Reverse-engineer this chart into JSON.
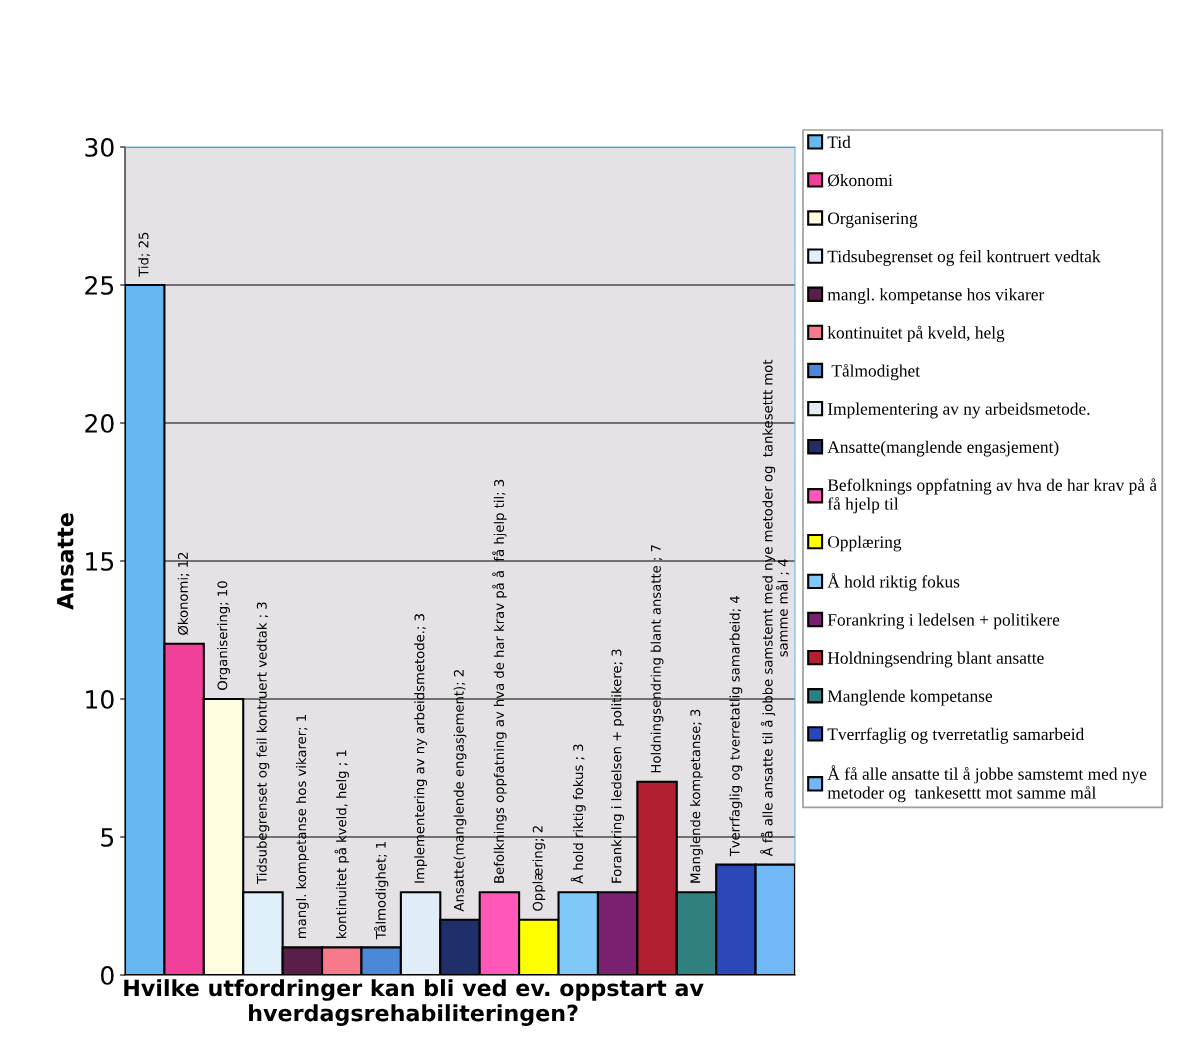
{
  "chart_data": {
    "type": "bar",
    "title": "Hvilke utfordringer kan bli ved ev. oppstart av\nhverdagsrehabiliteringen?",
    "ylabel": "Ansatte",
    "categories": [
      null,
      null,
      null,
      null,
      null,
      null,
      null,
      null,
      null,
      null,
      null,
      null,
      null,
      null,
      null,
      null,
      null
    ],
    "series": [
      {
        "name": "Tid",
        "color": "#66b8f0",
        "values": [
          25,
          null,
          null,
          null,
          null,
          null,
          null,
          null,
          null,
          null,
          null,
          null,
          null,
          null,
          null,
          null,
          null
        ],
        "value_labels": [
          "Tid; 25",
          null,
          null,
          null,
          null,
          null,
          null,
          null,
          null,
          null,
          null,
          null,
          null,
          null,
          null,
          null,
          null
        ]
      },
      {
        "name": "Økonomi",
        "color": "#f0409a",
        "values": [
          null,
          12,
          null,
          null,
          null,
          null,
          null,
          null,
          null,
          null,
          null,
          null,
          null,
          null,
          null,
          null,
          null
        ],
        "value_labels": [
          null,
          "Økonomi; 12",
          null,
          null,
          null,
          null,
          null,
          null,
          null,
          null,
          null,
          null,
          null,
          null,
          null,
          null,
          null
        ]
      },
      {
        "name": "Organisering",
        "color": "#fffde0",
        "values": [
          null,
          null,
          10,
          null,
          null,
          null,
          null,
          null,
          null,
          null,
          null,
          null,
          null,
          null,
          null,
          null,
          null
        ],
        "value_labels": [
          null,
          null,
          "Organisering; 10",
          null,
          null,
          null,
          null,
          null,
          null,
          null,
          null,
          null,
          null,
          null,
          null,
          null,
          null
        ]
      },
      {
        "name": "Tidsubegrenset og feil kontruert vedtak",
        "color": "#e0f0fa",
        "values": [
          null,
          null,
          null,
          3,
          null,
          null,
          null,
          null,
          null,
          null,
          null,
          null,
          null,
          null,
          null,
          null,
          null
        ],
        "value_labels": [
          null,
          null,
          null,
          "Tidsubegrenset og feil kontruert vedtak ; 3",
          null,
          null,
          null,
          null,
          null,
          null,
          null,
          null,
          null,
          null,
          null,
          null,
          null
        ]
      },
      {
        "name": "mangl. kompetanse hos vikarer",
        "color": "#5a1f48",
        "values": [
          null,
          null,
          null,
          null,
          1,
          null,
          null,
          null,
          null,
          null,
          null,
          null,
          null,
          null,
          null,
          null,
          null
        ],
        "value_labels": [
          null,
          null,
          null,
          null,
          "mangl. kompetanse hos vikarer; 1",
          null,
          null,
          null,
          null,
          null,
          null,
          null,
          null,
          null,
          null,
          null,
          null
        ]
      },
      {
        "name": "kontinuitet på kveld, helg",
        "color": "#f87a8a",
        "values": [
          null,
          null,
          null,
          null,
          null,
          1,
          null,
          null,
          null,
          null,
          null,
          null,
          null,
          null,
          null,
          null,
          null
        ],
        "value_labels": [
          null,
          null,
          null,
          null,
          null,
          "kontinuitet på kveld, helg ; 1",
          null,
          null,
          null,
          null,
          null,
          null,
          null,
          null,
          null,
          null,
          null
        ]
      },
      {
        "name": " Tålmodighet",
        "color": "#4a88d8",
        "values": [
          null,
          null,
          null,
          null,
          null,
          null,
          1,
          null,
          null,
          null,
          null,
          null,
          null,
          null,
          null,
          null,
          null
        ],
        "value_labels": [
          null,
          null,
          null,
          null,
          null,
          null,
          "Tålmodighet; 1",
          null,
          null,
          null,
          null,
          null,
          null,
          null,
          null,
          null,
          null
        ]
      },
      {
        "name": "Implementering av ny arbeidsmetode.",
        "color": "#e0ecf8",
        "values": [
          null,
          null,
          null,
          null,
          null,
          null,
          null,
          3,
          null,
          null,
          null,
          null,
          null,
          null,
          null,
          null,
          null
        ],
        "value_labels": [
          null,
          null,
          null,
          null,
          null,
          null,
          null,
          "Implementering av ny arbeidsmetode.; 3",
          null,
          null,
          null,
          null,
          null,
          null,
          null,
          null,
          null
        ]
      },
      {
        "name": "Ansatte(manglende engasjement)",
        "color": "#1f2f6a",
        "values": [
          null,
          null,
          null,
          null,
          null,
          null,
          null,
          null,
          2,
          null,
          null,
          null,
          null,
          null,
          null,
          null,
          null
        ],
        "value_labels": [
          null,
          null,
          null,
          null,
          null,
          null,
          null,
          null,
          "Ansatte(manglende engasjement); 2",
          null,
          null,
          null,
          null,
          null,
          null,
          null,
          null
        ]
      },
      {
        "name": "Befolknings oppfatning av hva de har krav på å\nfå hjelp til",
        "color": "#ff58b8",
        "values": [
          null,
          null,
          null,
          null,
          null,
          null,
          null,
          null,
          null,
          3,
          null,
          null,
          null,
          null,
          null,
          null,
          null
        ],
        "value_labels": [
          null,
          null,
          null,
          null,
          null,
          null,
          null,
          null,
          null,
          "Befolknings oppfatning av hva de har krav på å  få hjelp til; 3",
          null,
          null,
          null,
          null,
          null,
          null,
          null
        ]
      },
      {
        "name": "Opplæring",
        "color": "#ffff00",
        "values": [
          null,
          null,
          null,
          null,
          null,
          null,
          null,
          null,
          null,
          null,
          2,
          null,
          null,
          null,
          null,
          null,
          null
        ],
        "value_labels": [
          null,
          null,
          null,
          null,
          null,
          null,
          null,
          null,
          null,
          null,
          "Opplæring; 2",
          null,
          null,
          null,
          null,
          null,
          null
        ]
      },
      {
        "name": "Å hold riktig fokus",
        "color": "#80c8f8",
        "values": [
          null,
          null,
          null,
          null,
          null,
          null,
          null,
          null,
          null,
          null,
          null,
          3,
          null,
          null,
          null,
          null,
          null
        ],
        "value_labels": [
          null,
          null,
          null,
          null,
          null,
          null,
          null,
          null,
          null,
          null,
          null,
          "Å hold riktig fokus ; 3",
          null,
          null,
          null,
          null,
          null
        ]
      },
      {
        "name": "Forankring i ledelsen + politikere",
        "color": "#7a2070",
        "values": [
          null,
          null,
          null,
          null,
          null,
          null,
          null,
          null,
          null,
          null,
          null,
          null,
          3,
          null,
          null,
          null,
          null
        ],
        "value_labels": [
          null,
          null,
          null,
          null,
          null,
          null,
          null,
          null,
          null,
          null,
          null,
          null,
          "Forankring i ledelsen + politikere; 3",
          null,
          null,
          null,
          null
        ]
      },
      {
        "name": "Holdningsendring blant ansatte",
        "color": "#b02030",
        "values": [
          null,
          null,
          null,
          null,
          null,
          null,
          null,
          null,
          null,
          null,
          null,
          null,
          null,
          7,
          null,
          null,
          null
        ],
        "value_labels": [
          null,
          null,
          null,
          null,
          null,
          null,
          null,
          null,
          null,
          null,
          null,
          null,
          null,
          "Holdningsendring blant ansatte ; 7",
          null,
          null,
          null
        ]
      },
      {
        "name": "Manglende kompetanse",
        "color": "#308080",
        "values": [
          null,
          null,
          null,
          null,
          null,
          null,
          null,
          null,
          null,
          null,
          null,
          null,
          null,
          null,
          3,
          null,
          null
        ],
        "value_labels": [
          null,
          null,
          null,
          null,
          null,
          null,
          null,
          null,
          null,
          null,
          null,
          null,
          null,
          null,
          "Manglende kompetanse; 3",
          null,
          null
        ]
      },
      {
        "name": "Tverrfaglig og tverretatlig samarbeid",
        "color": "#2a48b8",
        "values": [
          null,
          null,
          null,
          null,
          null,
          null,
          null,
          null,
          null,
          null,
          null,
          null,
          null,
          null,
          null,
          4,
          null
        ],
        "value_labels": [
          null,
          null,
          null,
          null,
          null,
          null,
          null,
          null,
          null,
          null,
          null,
          null,
          null,
          null,
          null,
          "Tverrfaglig og tverretatlig samarbeid; 4",
          null
        ]
      },
      {
        "name": "Å få alle ansatte til å jobbe samstemt med nye\nmetoder og  tankesettt mot samme mål",
        "color": "#70b8f8",
        "values": [
          null,
          null,
          null,
          null,
          null,
          null,
          null,
          null,
          null,
          null,
          null,
          null,
          null,
          null,
          null,
          null,
          4
        ],
        "value_labels": [
          null,
          null,
          null,
          null,
          null,
          null,
          null,
          null,
          null,
          null,
          null,
          null,
          null,
          null,
          null,
          null,
          "Å få alle ansatte til å jobbe samstemt med nye metoder og  tankesettt mot\nsamme mål ; 4"
        ]
      }
    ],
    "ylim": [
      0,
      30
    ],
    "yticks": [
      0,
      5,
      10,
      15,
      20,
      25,
      30
    ],
    "grid": "y",
    "legend": "right",
    "tick_labels": "y"
  }
}
